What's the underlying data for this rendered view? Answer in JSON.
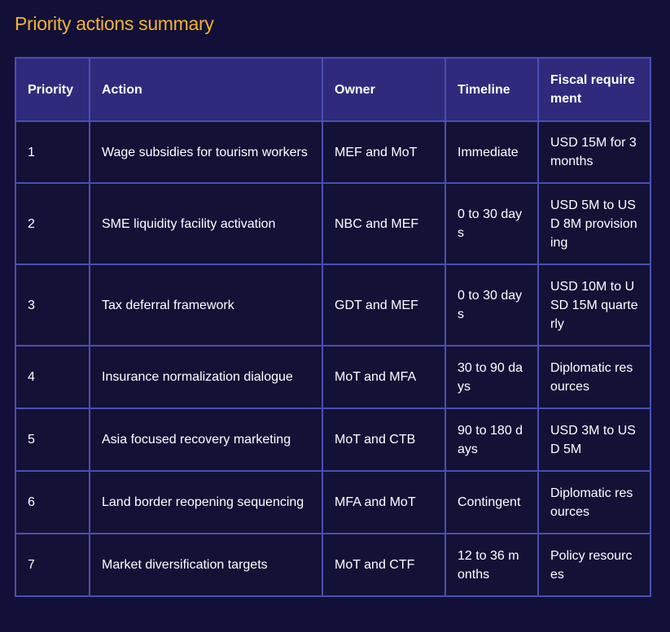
{
  "title": "Priority actions summary",
  "table": {
    "headers": [
      "Priority",
      "Action",
      "Owner",
      "Timeline",
      "Fiscal requirement"
    ],
    "rows": [
      [
        "1",
        "Wage subsidies for tourism workers",
        "MEF and MoT",
        "Immediate",
        "USD 15M for 3 months"
      ],
      [
        "2",
        "SME liquidity facility activation",
        "NBC and MEF",
        "0 to 30 days",
        "USD 5M to USD 8M provisioning"
      ],
      [
        "3",
        "Tax deferral framework",
        "GDT and MEF",
        "0 to 30 days",
        "USD 10M to USD 15M quarterly"
      ],
      [
        "4",
        "Insurance normalization dialogue",
        "MoT and MFA",
        "30 to 90 days",
        "Diplomatic resources"
      ],
      [
        "5",
        "Asia focused recovery marketing",
        "MoT and CTB",
        "90 to 180 days",
        "USD 3M to USD 5M"
      ],
      [
        "6",
        "Land border reopening sequencing",
        "MFA and MoT",
        "Contingent",
        "Diplomatic resources"
      ],
      [
        "7",
        "Market diversification targets",
        "MoT and CTF",
        "12 to 36 months",
        "Policy resources"
      ]
    ]
  }
}
